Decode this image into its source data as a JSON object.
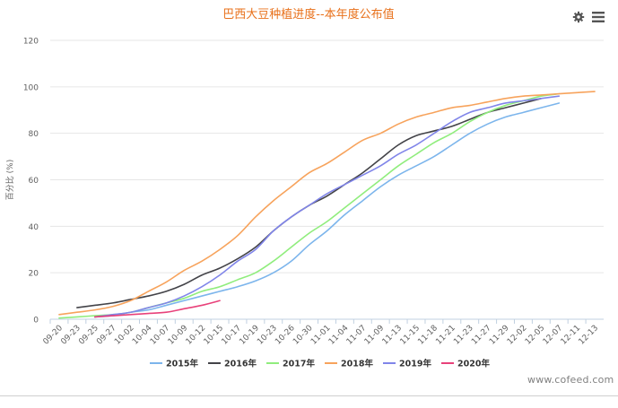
{
  "chart_data": {
    "type": "line",
    "title": "巴西大豆种植进度--本年度公布值",
    "ylabel": "百分比 (%)",
    "xlabel": "",
    "ylim": [
      0,
      120
    ],
    "yticks": [
      0,
      20,
      40,
      60,
      80,
      100,
      120
    ],
    "categories": [
      "09-20",
      "09-23",
      "09-25",
      "09-27",
      "10-02",
      "10-04",
      "10-07",
      "10-09",
      "10-12",
      "10-15",
      "10-17",
      "10-19",
      "10-23",
      "10-26",
      "10-30",
      "11-01",
      "11-04",
      "11-07",
      "11-09",
      "11-13",
      "11-15",
      "11-18",
      "11-21",
      "11-23",
      "11-27",
      "11-29",
      "12-02",
      "12-05",
      "12-07",
      "12-11",
      "12-13"
    ],
    "legend_position": "bottom",
    "series": [
      {
        "name": "2015年",
        "color": "#7cb5ec",
        "values": [
          null,
          null,
          1,
          1.5,
          3,
          4,
          6,
          8,
          10,
          12,
          14,
          16.5,
          20,
          25,
          32,
          38,
          45,
          51,
          57,
          62,
          66,
          70,
          75,
          80,
          84,
          87,
          89,
          91,
          93,
          null,
          null
        ]
      },
      {
        "name": "2016年",
        "color": "#434348",
        "values": [
          null,
          5,
          6,
          7,
          8.5,
          10,
          12,
          15,
          19,
          22,
          26,
          31,
          38,
          44,
          49,
          53,
          58,
          63,
          69,
          75,
          79,
          81,
          83,
          86,
          89,
          91,
          93,
          95,
          null,
          null,
          null
        ]
      },
      {
        "name": "2017年",
        "color": "#90ed7d",
        "values": [
          0.5,
          1,
          1.5,
          2,
          3,
          5,
          7,
          9,
          12,
          14,
          17,
          20,
          25,
          31,
          37,
          42,
          48,
          54,
          60,
          66,
          71,
          76,
          80,
          85,
          89,
          92,
          94,
          96,
          97,
          null,
          null
        ]
      },
      {
        "name": "2018年",
        "color": "#f7a35c",
        "values": [
          2,
          3,
          4,
          5.5,
          8,
          12,
          16,
          21,
          25,
          30,
          36,
          44,
          51,
          57,
          63,
          67,
          72,
          77,
          80,
          84,
          87,
          89,
          91,
          92,
          93.5,
          95,
          96,
          96.5,
          97,
          97.5,
          98
        ]
      },
      {
        "name": "2019年",
        "color": "#8085e9",
        "values": [
          null,
          null,
          1,
          2,
          3,
          5,
          7,
          10,
          14,
          19,
          25,
          30,
          38,
          44,
          49,
          54,
          58,
          62,
          66,
          71,
          75,
          80,
          85,
          89,
          91,
          93,
          94,
          95,
          96,
          null,
          null
        ]
      },
      {
        "name": "2020年",
        "color": "#e8417a",
        "values": [
          null,
          null,
          1,
          1.5,
          2,
          2.5,
          3,
          4.5,
          6,
          8,
          null,
          null,
          null,
          null,
          null,
          null,
          null,
          null,
          null,
          null,
          null,
          null,
          null,
          null,
          null,
          null,
          null,
          null,
          null,
          null,
          null
        ]
      }
    ]
  },
  "title_color": "#e8701a",
  "toolbar": {
    "settings_icon": "gear-icon",
    "menu_icon": "hamburger-menu-icon"
  },
  "watermark": "www.cofeed.com"
}
